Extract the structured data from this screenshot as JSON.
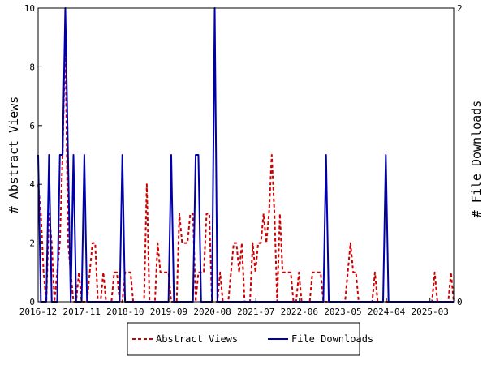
{
  "chart_data": {
    "type": "line",
    "title": "",
    "ylabel_left": "# Abstract Views",
    "ylabel_right": "# File Downloads",
    "ylim_left": [
      0,
      10
    ],
    "ylim_right": [
      0,
      2
    ],
    "yticks_left": [
      "0",
      "2",
      "4",
      "6",
      "8",
      "10"
    ],
    "yticks_right": [
      "0",
      "2"
    ],
    "xticks": [
      "2016-12",
      "2017-11",
      "2018-10",
      "2019-09",
      "2020-08",
      "2021-07",
      "2022-06",
      "2023-05",
      "2024-04",
      "2025-03"
    ],
    "grid": false,
    "legend_position": "bottom",
    "x_start": "2016-12",
    "x_end": "2025-09",
    "series": [
      {
        "name": "Abstract Views",
        "axis": "left",
        "color": "#cc0000",
        "style": "dashed",
        "values": [
          4,
          3,
          1,
          0,
          3,
          2,
          0,
          1,
          2,
          5,
          9,
          2,
          1,
          0,
          0,
          1,
          0,
          0,
          0,
          1,
          2,
          2,
          0,
          0,
          1,
          0,
          0,
          0,
          1,
          1,
          0,
          0,
          1,
          1,
          1,
          0,
          0,
          0,
          0,
          0,
          4,
          0,
          0,
          0,
          2,
          1,
          1,
          1,
          1,
          0,
          0,
          0,
          3,
          2,
          2,
          2,
          3,
          3,
          0,
          1,
          1,
          1,
          3,
          3,
          0,
          0,
          0,
          1,
          0,
          0,
          0,
          1,
          2,
          2,
          1,
          2,
          0,
          0,
          0,
          2,
          1,
          2,
          2,
          3,
          2,
          3,
          5,
          3,
          0,
          3,
          1,
          1,
          1,
          1,
          0,
          0,
          1,
          0,
          0,
          0,
          0,
          1,
          1,
          1,
          1,
          0,
          0,
          0,
          0,
          0,
          0,
          0,
          0,
          0,
          1,
          2,
          1,
          1,
          0,
          0,
          0,
          0,
          0,
          0,
          1,
          0,
          0,
          0,
          0,
          0,
          0,
          0,
          0,
          0,
          0,
          0,
          0,
          0,
          0,
          0,
          0,
          0,
          0,
          0,
          0,
          0,
          1,
          0,
          0,
          0,
          0,
          0,
          1,
          0
        ]
      },
      {
        "name": "File Downloads",
        "axis": "right",
        "color": "#0000aa",
        "style": "solid",
        "values": [
          1,
          0,
          0,
          0,
          1,
          0,
          0,
          0,
          1,
          1,
          2,
          1,
          0,
          1,
          0,
          0,
          0,
          1,
          0,
          0,
          0,
          0,
          0,
          0,
          0,
          0,
          0,
          0,
          0,
          0,
          0,
          1,
          0,
          0,
          0,
          0,
          0,
          0,
          0,
          0,
          0,
          0,
          0,
          0,
          0,
          0,
          0,
          0,
          0,
          1,
          0,
          0,
          0,
          0,
          0,
          0,
          0,
          0,
          1,
          1,
          0,
          0,
          0,
          0,
          0,
          2,
          0,
          0,
          0,
          0,
          0,
          0,
          0,
          0,
          0,
          0,
          0,
          0,
          0,
          0,
          0,
          0,
          0,
          0,
          0,
          0,
          0,
          0,
          0,
          0,
          0,
          0,
          0,
          0,
          0,
          0,
          0,
          0,
          0,
          0,
          0,
          0,
          0,
          0,
          0,
          0,
          1,
          0,
          0,
          0,
          0,
          0,
          0,
          0,
          0,
          0,
          0,
          0,
          0,
          0,
          0,
          0,
          0,
          0,
          0,
          0,
          0,
          0,
          1,
          0,
          0,
          0,
          0,
          0,
          0,
          0,
          0,
          0,
          0,
          0,
          0,
          0,
          0,
          0,
          0,
          0,
          0,
          0,
          0,
          0,
          0,
          0,
          0,
          0
        ]
      }
    ]
  }
}
